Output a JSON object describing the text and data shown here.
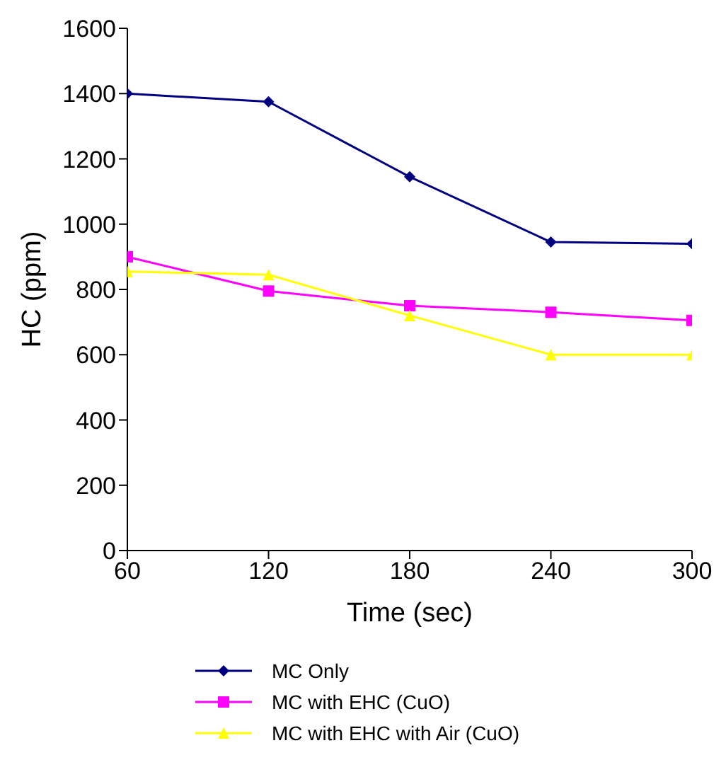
{
  "chart_data": {
    "type": "line",
    "xlabel": "Time (sec)",
    "ylabel": "HC (ppm)",
    "x": [
      60,
      120,
      180,
      240,
      300
    ],
    "xlim": [
      60,
      300
    ],
    "xticks": [
      60,
      120,
      180,
      240,
      300
    ],
    "ylim": [
      0,
      1600
    ],
    "yticks": [
      0,
      200,
      400,
      600,
      800,
      1000,
      1200,
      1400,
      1600
    ],
    "grid": false,
    "legend": "bottom",
    "series": [
      {
        "name": "MC Only",
        "color": "#000080",
        "marker": "diamond",
        "values": [
          1400,
          1375,
          1145,
          945,
          940
        ]
      },
      {
        "name": "MC with EHC (CuO)",
        "color": "#ff00ff",
        "marker": "square",
        "values": [
          900,
          795,
          750,
          730,
          705
        ]
      },
      {
        "name": "MC with EHC with Air (CuO)",
        "color": "#ffff00",
        "marker": "triangle",
        "values": [
          855,
          845,
          720,
          600,
          600
        ]
      }
    ]
  }
}
